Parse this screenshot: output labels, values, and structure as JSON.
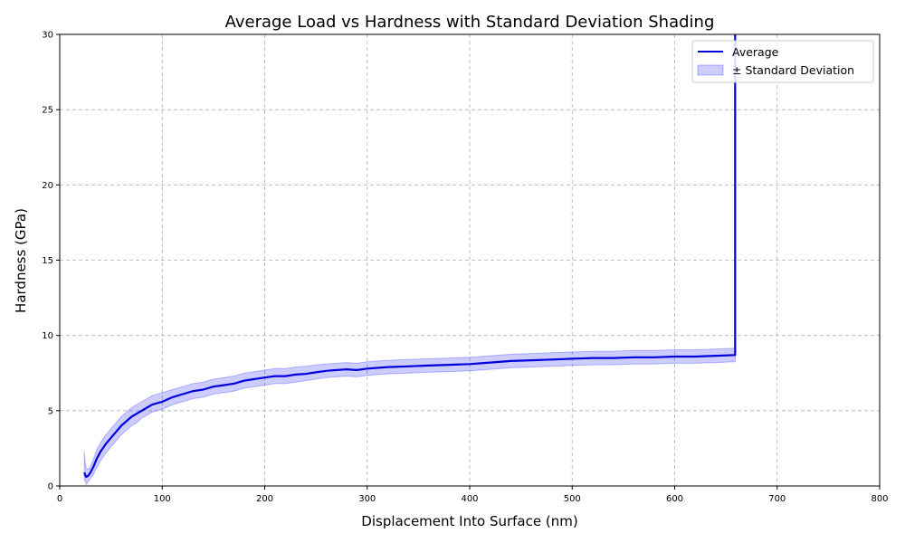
{
  "chart_data": {
    "type": "line",
    "title": "Average Load vs Hardness with Standard Deviation Shading",
    "xlabel": "Displacement Into Surface (nm)",
    "ylabel": "Hardness (GPa)",
    "xlim": [
      0,
      800
    ],
    "ylim": [
      0,
      30
    ],
    "xticks": [
      "0",
      "100",
      "200",
      "300",
      "400",
      "500",
      "600",
      "700",
      "800"
    ],
    "yticks": [
      "0",
      "5",
      "10",
      "15",
      "20",
      "25",
      "30"
    ],
    "grid": true,
    "legend_position": "top-right",
    "colors": {
      "line": "#0000dd",
      "band": "#0000ff",
      "grid": "#b0b0b0"
    },
    "series": [
      {
        "name": "Average",
        "x": [
          24,
          25,
          26,
          28,
          30,
          33,
          36,
          40,
          45,
          50,
          55,
          60,
          65,
          70,
          75,
          80,
          85,
          90,
          95,
          100,
          110,
          120,
          130,
          140,
          150,
          160,
          170,
          180,
          190,
          200,
          210,
          220,
          230,
          240,
          250,
          260,
          270,
          280,
          290,
          300,
          320,
          340,
          360,
          380,
          400,
          420,
          440,
          460,
          480,
          500,
          520,
          540,
          560,
          580,
          600,
          620,
          640,
          659,
          659
        ],
        "y": [
          0.9,
          0.7,
          0.6,
          0.7,
          0.9,
          1.3,
          1.8,
          2.3,
          2.8,
          3.2,
          3.6,
          4.0,
          4.3,
          4.6,
          4.8,
          5.0,
          5.2,
          5.4,
          5.5,
          5.6,
          5.9,
          6.1,
          6.3,
          6.4,
          6.6,
          6.7,
          6.8,
          7.0,
          7.1,
          7.2,
          7.3,
          7.3,
          7.4,
          7.45,
          7.55,
          7.65,
          7.7,
          7.75,
          7.7,
          7.8,
          7.9,
          7.95,
          8.0,
          8.05,
          8.1,
          8.2,
          8.3,
          8.35,
          8.4,
          8.45,
          8.5,
          8.5,
          8.55,
          8.55,
          8.6,
          8.6,
          8.65,
          8.7,
          30
        ]
      },
      {
        "name": "± Standard Deviation",
        "x": [
          24,
          25,
          26,
          28,
          30,
          33,
          36,
          40,
          45,
          50,
          55,
          60,
          65,
          70,
          75,
          80,
          85,
          90,
          95,
          100,
          110,
          120,
          130,
          140,
          150,
          160,
          170,
          180,
          190,
          200,
          210,
          220,
          230,
          240,
          250,
          260,
          270,
          280,
          290,
          300,
          320,
          340,
          360,
          380,
          400,
          420,
          440,
          460,
          480,
          500,
          520,
          540,
          560,
          580,
          600,
          620,
          640,
          659
        ],
        "lower": [
          0.4,
          0.3,
          0.1,
          0.3,
          0.5,
          0.8,
          1.2,
          1.7,
          2.2,
          2.6,
          3.0,
          3.4,
          3.7,
          4.0,
          4.2,
          4.5,
          4.7,
          4.9,
          5.0,
          5.1,
          5.4,
          5.6,
          5.8,
          5.9,
          6.1,
          6.2,
          6.3,
          6.5,
          6.6,
          6.7,
          6.8,
          6.8,
          6.9,
          7.0,
          7.1,
          7.2,
          7.25,
          7.3,
          7.25,
          7.35,
          7.45,
          7.5,
          7.55,
          7.6,
          7.65,
          7.75,
          7.85,
          7.9,
          7.95,
          8.0,
          8.05,
          8.05,
          8.1,
          8.1,
          8.15,
          8.15,
          8.2,
          8.25
        ],
        "upper": [
          2.3,
          1.5,
          1.2,
          1.1,
          1.3,
          1.8,
          2.4,
          2.9,
          3.4,
          3.8,
          4.2,
          4.6,
          4.9,
          5.2,
          5.4,
          5.6,
          5.8,
          6.0,
          6.1,
          6.2,
          6.4,
          6.6,
          6.8,
          6.9,
          7.1,
          7.2,
          7.3,
          7.5,
          7.6,
          7.7,
          7.8,
          7.8,
          7.9,
          7.95,
          8.05,
          8.1,
          8.15,
          8.2,
          8.15,
          8.25,
          8.35,
          8.4,
          8.45,
          8.5,
          8.55,
          8.65,
          8.75,
          8.8,
          8.85,
          8.9,
          8.95,
          8.95,
          9.0,
          9.0,
          9.05,
          9.05,
          9.1,
          9.15
        ]
      }
    ]
  }
}
